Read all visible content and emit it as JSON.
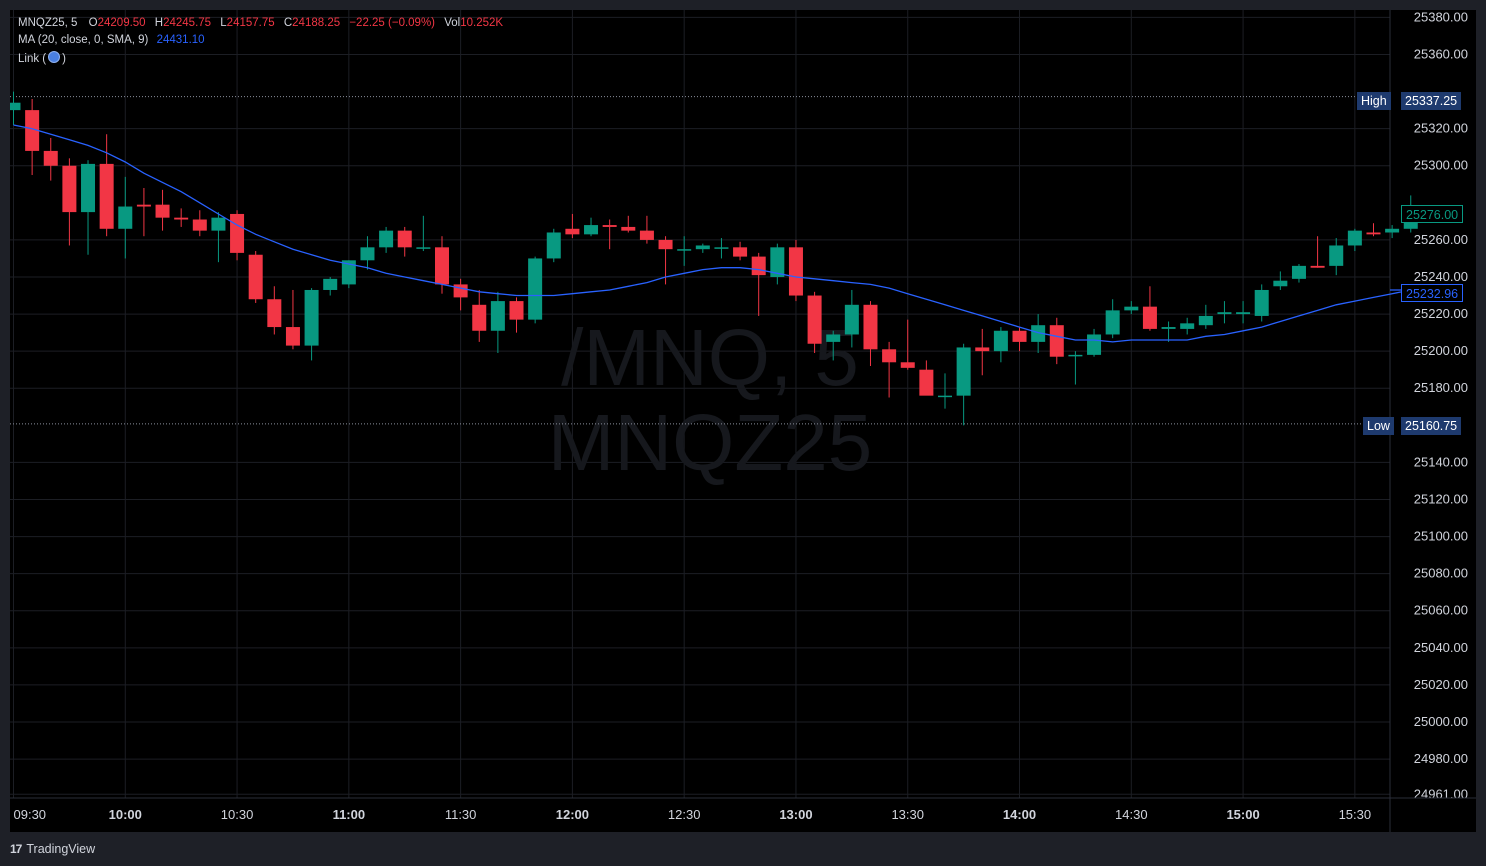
{
  "symbol": "MNQZ25",
  "interval": "5",
  "ohlc": {
    "open_label": "O",
    "open": "24209.50",
    "high_label": "H",
    "high": "24245.75",
    "low_label": "L",
    "low": "24157.75",
    "close_label": "C",
    "close": "24188.25",
    "change": "−22.25 (−0.09%)",
    "vol_label": "Vol",
    "volume": "10.252K"
  },
  "indicator": {
    "label": "MA (20, close, 0, SMA, 9)",
    "value": "24431.10"
  },
  "link": {
    "label": "Link (",
    "close": ")"
  },
  "watermark": {
    "line1": "/MNQ, 5",
    "line2": "MNQZ25"
  },
  "high_line": {
    "label": "High",
    "value": "25337.25"
  },
  "low_line": {
    "label": "Low",
    "value": "25160.75"
  },
  "last_price": "25276.00",
  "ma_price": "25232.96",
  "branding": {
    "logo": "17",
    "name": "TradingView"
  },
  "colors": {
    "up": "#089981",
    "down": "#f23645",
    "ma": "#2962ff",
    "tag_bg": "#1e3a6e",
    "background": "#000000"
  },
  "chart_data": {
    "type": "candlestick",
    "y_ticks": [
      "25380.00",
      "25360.00",
      "25320.00",
      "25300.00",
      "25260.00",
      "25240.00",
      "25220.00",
      "25200.00",
      "25180.00",
      "25140.00",
      "25120.00",
      "25100.00",
      "25080.00",
      "25060.00",
      "25040.00",
      "25020.00",
      "25000.00",
      "24980.00",
      "24961.00"
    ],
    "ylim": [
      24959,
      25384
    ],
    "x_ticks": [
      {
        "label": "09:30",
        "bold": false
      },
      {
        "label": "10:00",
        "bold": true
      },
      {
        "label": "10:30",
        "bold": false
      },
      {
        "label": "11:00",
        "bold": true
      },
      {
        "label": "11:30",
        "bold": false
      },
      {
        "label": "12:00",
        "bold": true
      },
      {
        "label": "12:30",
        "bold": false
      },
      {
        "label": "13:00",
        "bold": true
      },
      {
        "label": "13:30",
        "bold": false
      },
      {
        "label": "14:00",
        "bold": true
      },
      {
        "label": "14:30",
        "bold": false
      },
      {
        "label": "15:00",
        "bold": true
      },
      {
        "label": "15:30",
        "bold": false
      }
    ],
    "candles": [
      {
        "t": "09:30",
        "o": 25330,
        "h": 25340,
        "l": 25322,
        "c": 25334
      },
      {
        "t": "09:35",
        "o": 25330,
        "h": 25336,
        "l": 25295,
        "c": 25308
      },
      {
        "t": "09:40",
        "o": 25308,
        "h": 25315,
        "l": 25292,
        "c": 25300
      },
      {
        "t": "09:45",
        "o": 25300,
        "h": 25304,
        "l": 25257,
        "c": 25275
      },
      {
        "t": "09:50",
        "o": 25275,
        "h": 25303,
        "l": 25252,
        "c": 25301
      },
      {
        "t": "09:55",
        "o": 25301,
        "h": 25317,
        "l": 25262,
        "c": 25266
      },
      {
        "t": "10:00",
        "o": 25266,
        "h": 25294,
        "l": 25250,
        "c": 25278
      },
      {
        "t": "10:05",
        "o": 25279,
        "h": 25288,
        "l": 25262,
        "c": 25278
      },
      {
        "t": "10:10",
        "o": 25279,
        "h": 25287,
        "l": 25265,
        "c": 25272
      },
      {
        "t": "10:15",
        "o": 25272,
        "h": 25277,
        "l": 25267,
        "c": 25271
      },
      {
        "t": "10:20",
        "o": 25271,
        "h": 25276,
        "l": 25262,
        "c": 25265
      },
      {
        "t": "10:25",
        "o": 25265,
        "h": 25275,
        "l": 25248,
        "c": 25272
      },
      {
        "t": "10:30",
        "o": 25274,
        "h": 25276,
        "l": 25249,
        "c": 25253
      },
      {
        "t": "10:35",
        "o": 25252,
        "h": 25254,
        "l": 25226,
        "c": 25228
      },
      {
        "t": "10:40",
        "o": 25228,
        "h": 25235,
        "l": 25209,
        "c": 25213
      },
      {
        "t": "10:45",
        "o": 25213,
        "h": 25233,
        "l": 25201,
        "c": 25203
      },
      {
        "t": "10:50",
        "o": 25203,
        "h": 25234,
        "l": 25195,
        "c": 25233
      },
      {
        "t": "10:55",
        "o": 25233,
        "h": 25240,
        "l": 25230,
        "c": 25239
      },
      {
        "t": "11:00",
        "o": 25236,
        "h": 25249,
        "l": 25234,
        "c": 25249
      },
      {
        "t": "11:05",
        "o": 25249,
        "h": 25262,
        "l": 25244,
        "c": 25256
      },
      {
        "t": "11:10",
        "o": 25256,
        "h": 25267,
        "l": 25253,
        "c": 25265
      },
      {
        "t": "11:15",
        "o": 25265,
        "h": 25267,
        "l": 25251,
        "c": 25256
      },
      {
        "t": "11:20",
        "o": 25256,
        "h": 25273,
        "l": 25254,
        "c": 25256
      },
      {
        "t": "11:25",
        "o": 25256,
        "h": 25262,
        "l": 25231,
        "c": 25236
      },
      {
        "t": "11:30",
        "o": 25236,
        "h": 25239,
        "l": 25222,
        "c": 25229
      },
      {
        "t": "11:35",
        "o": 25225,
        "h": 25233,
        "l": 25205,
        "c": 25211
      },
      {
        "t": "11:40",
        "o": 25211,
        "h": 25232,
        "l": 25199,
        "c": 25227
      },
      {
        "t": "11:45",
        "o": 25227,
        "h": 25229,
        "l": 25210,
        "c": 25217
      },
      {
        "t": "11:50",
        "o": 25217,
        "h": 25251,
        "l": 25215,
        "c": 25250
      },
      {
        "t": "11:55",
        "o": 25250,
        "h": 25266,
        "l": 25248,
        "c": 25264
      },
      {
        "t": "12:00",
        "o": 25266,
        "h": 25274,
        "l": 25261,
        "c": 25263
      },
      {
        "t": "12:05",
        "o": 25263,
        "h": 25272,
        "l": 25262,
        "c": 25268
      },
      {
        "t": "12:10",
        "o": 25268,
        "h": 25271,
        "l": 25255,
        "c": 25267
      },
      {
        "t": "12:15",
        "o": 25267,
        "h": 25273,
        "l": 25264,
        "c": 25265
      },
      {
        "t": "12:20",
        "o": 25265,
        "h": 25273,
        "l": 25258,
        "c": 25260
      },
      {
        "t": "12:25",
        "o": 25260,
        "h": 25262,
        "l": 25236,
        "c": 25255
      },
      {
        "t": "12:30",
        "o": 25255,
        "h": 25262,
        "l": 25246,
        "c": 25255
      },
      {
        "t": "12:35",
        "o": 25255,
        "h": 25258,
        "l": 25253,
        "c": 25257
      },
      {
        "t": "12:40",
        "o": 25256,
        "h": 25261,
        "l": 25250,
        "c": 25256
      },
      {
        "t": "12:45",
        "o": 25256,
        "h": 25259,
        "l": 25249,
        "c": 25251
      },
      {
        "t": "12:50",
        "o": 25251,
        "h": 25253,
        "l": 25219,
        "c": 25241
      },
      {
        "t": "12:55",
        "o": 25240,
        "h": 25258,
        "l": 25236,
        "c": 25256
      },
      {
        "t": "13:00",
        "o": 25256,
        "h": 25260,
        "l": 25227,
        "c": 25230
      },
      {
        "t": "13:05",
        "o": 25230,
        "h": 25232,
        "l": 25199,
        "c": 25204
      },
      {
        "t": "13:10",
        "o": 25205,
        "h": 25211,
        "l": 25195,
        "c": 25209
      },
      {
        "t": "13:15",
        "o": 25209,
        "h": 25233,
        "l": 25202,
        "c": 25225
      },
      {
        "t": "13:20",
        "o": 25225,
        "h": 25227,
        "l": 25192,
        "c": 25201
      },
      {
        "t": "13:25",
        "o": 25201,
        "h": 25205,
        "l": 25175,
        "c": 25194
      },
      {
        "t": "13:30",
        "o": 25194,
        "h": 25217,
        "l": 25190,
        "c": 25191
      },
      {
        "t": "13:35",
        "o": 25190,
        "h": 25195,
        "l": 25179,
        "c": 25176
      },
      {
        "t": "13:40",
        "o": 25176,
        "h": 25188,
        "l": 25169,
        "c": 25176
      },
      {
        "t": "13:45",
        "o": 25176,
        "h": 25204,
        "l": 25160,
        "c": 25202
      },
      {
        "t": "13:50",
        "o": 25202,
        "h": 25212,
        "l": 25187,
        "c": 25200
      },
      {
        "t": "13:55",
        "o": 25200,
        "h": 25213,
        "l": 25194,
        "c": 25211
      },
      {
        "t": "14:00",
        "o": 25211,
        "h": 25213,
        "l": 25200,
        "c": 25205
      },
      {
        "t": "14:05",
        "o": 25205,
        "h": 25220,
        "l": 25199,
        "c": 25214
      },
      {
        "t": "14:10",
        "o": 25214,
        "h": 25218,
        "l": 25193,
        "c": 25197
      },
      {
        "t": "14:15",
        "o": 25198,
        "h": 25200,
        "l": 25182,
        "c": 25198
      },
      {
        "t": "14:20",
        "o": 25198,
        "h": 25212,
        "l": 25197,
        "c": 25209
      },
      {
        "t": "14:25",
        "o": 25209,
        "h": 25228,
        "l": 25207,
        "c": 25222
      },
      {
        "t": "14:30",
        "o": 25222,
        "h": 25227,
        "l": 25220,
        "c": 25224
      },
      {
        "t": "14:35",
        "o": 25224,
        "h": 25235,
        "l": 25211,
        "c": 25212
      },
      {
        "t": "14:40",
        "o": 25212,
        "h": 25216,
        "l": 25205,
        "c": 25213
      },
      {
        "t": "14:45",
        "o": 25212,
        "h": 25218,
        "l": 25209,
        "c": 25215
      },
      {
        "t": "14:50",
        "o": 25214,
        "h": 25225,
        "l": 25212,
        "c": 25219
      },
      {
        "t": "14:55",
        "o": 25220,
        "h": 25227,
        "l": 25215,
        "c": 25221
      },
      {
        "t": "15:00",
        "o": 25220,
        "h": 25227,
        "l": 25215,
        "c": 25221
      },
      {
        "t": "15:05",
        "o": 25219,
        "h": 25236,
        "l": 25216,
        "c": 25233
      },
      {
        "t": "15:10",
        "o": 25235,
        "h": 25243,
        "l": 25233,
        "c": 25238
      },
      {
        "t": "15:15",
        "o": 25239,
        "h": 25247,
        "l": 25237,
        "c": 25246
      },
      {
        "t": "15:20",
        "o": 25246,
        "h": 25262,
        "l": 25245,
        "c": 25245
      },
      {
        "t": "15:25",
        "o": 25246,
        "h": 25261,
        "l": 25241,
        "c": 25257
      },
      {
        "t": "15:30",
        "o": 25257,
        "h": 25266,
        "l": 25254,
        "c": 25265
      },
      {
        "t": "15:35",
        "o": 25264,
        "h": 25269,
        "l": 25262,
        "c": 25263
      },
      {
        "t": "15:40",
        "o": 25264,
        "h": 25268,
        "l": 25261,
        "c": 25266
      },
      {
        "t": "15:45",
        "o": 25266,
        "h": 25284,
        "l": 25264,
        "c": 25276
      }
    ],
    "ma_series": [
      25322,
      25320,
      25317,
      25314,
      25311,
      25307,
      25302,
      25296,
      25291,
      25286,
      25280,
      25274,
      25268,
      25263,
      25259,
      25255,
      25252,
      25249,
      25247,
      25245,
      25242,
      25240,
      25238,
      25236,
      25234,
      25232,
      25231,
      25230,
      25230,
      25230,
      25231,
      25232,
      25233,
      25235,
      25237,
      25240,
      25242,
      25244,
      25245,
      25245,
      25244,
      25242,
      25240,
      25239,
      25238,
      25237,
      25236,
      25234,
      25231,
      25228,
      25225,
      25222,
      25219,
      25216,
      25213,
      25210,
      25208,
      25206,
      25206,
      25205,
      25206,
      25206,
      25206,
      25206,
      25208,
      25209,
      25211,
      25213,
      25216,
      25219,
      25222,
      25225,
      25227,
      25229,
      25231,
      25233
    ]
  }
}
